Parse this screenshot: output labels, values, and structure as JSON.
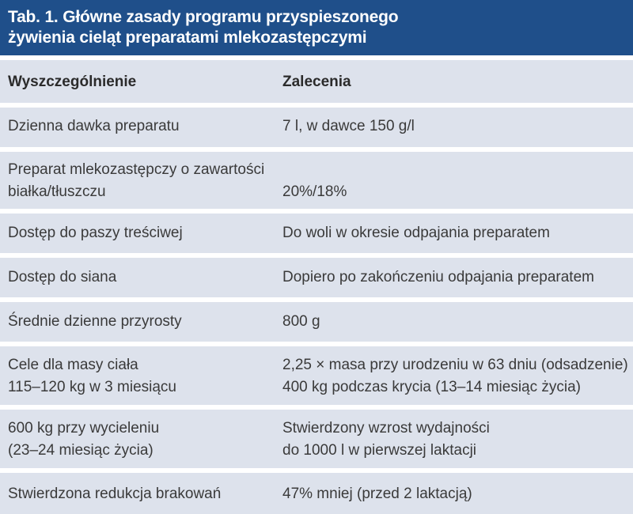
{
  "table": {
    "title_lines": [
      "Tab. 1. Główne zasady programu przyspieszonego",
      "żywienia cieląt preparatami mlekozastępczymi"
    ],
    "headers": [
      "Wyszczególnienie",
      "Zalecenia"
    ],
    "rows": [
      {
        "label": [
          "Dzienna dawka preparatu"
        ],
        "value": [
          "7 l, w dawce 150 g/l"
        ]
      },
      {
        "label": [
          "Preparat mlekozastępczy o zawartości",
          "białka/tłuszczu"
        ],
        "value": [
          "20%/18%"
        ]
      },
      {
        "label": [
          "Dostęp do paszy treściwej"
        ],
        "value": [
          "Do woli w okresie odpajania preparatem"
        ]
      },
      {
        "label": [
          "Dostęp do siana"
        ],
        "value": [
          "Dopiero po zakończeniu odpajania preparatem"
        ]
      },
      {
        "label": [
          "Średnie dzienne przyrosty"
        ],
        "value": [
          "800 g"
        ]
      },
      {
        "label": [
          "Cele dla masy ciała",
          "115–120 kg w 3 miesiącu"
        ],
        "value": [
          "2,25 × masa przy urodzeniu w 63 dniu (odsadzenie)",
          "400 kg podczas krycia (13–14 miesiąc życia)"
        ]
      },
      {
        "label": [
          "600 kg przy wycieleniu",
          "(23–24 miesiąc życia)"
        ],
        "value": [
          "Stwierdzony wzrost wydajności",
          "do 1000 l w pierwszej laktacji"
        ]
      },
      {
        "label": [
          "Stwierdzona redukcja brakowań"
        ],
        "value": [
          "47% mniej (przed 2 laktacją)"
        ]
      }
    ]
  }
}
